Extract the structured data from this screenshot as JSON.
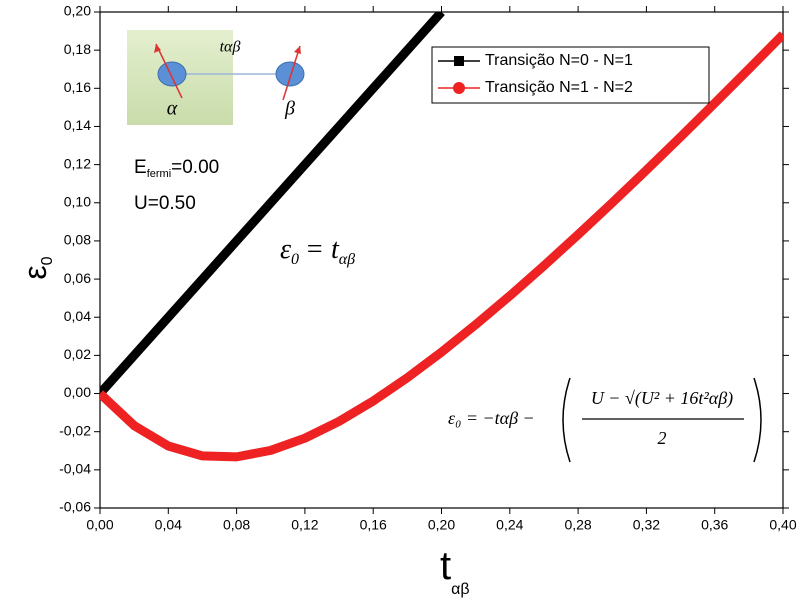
{
  "chart_data": {
    "type": "line",
    "xlabel": {
      "symbol": "t",
      "subscript": "αβ"
    },
    "ylabel": {
      "symbol": "ε",
      "subscript": "0"
    },
    "x": [
      0,
      0.02,
      0.04,
      0.06,
      0.08,
      0.1,
      0.12,
      0.14,
      0.16,
      0.18,
      0.2,
      0.22,
      0.24,
      0.26,
      0.28,
      0.3,
      0.32,
      0.34,
      0.36,
      0.38,
      0.4
    ],
    "series": [
      {
        "name": "Transição N=0 - N=1",
        "color": "#000000",
        "marker": "square",
        "values": [
          0,
          0.02,
          0.04,
          0.06,
          0.08,
          0.1,
          0.12,
          0.14,
          0.16,
          0.18,
          0.2,
          null,
          null,
          null,
          null,
          null,
          null,
          null,
          null,
          null,
          null
        ]
      },
      {
        "name": "Transição N=1 - N=2",
        "color": "#ee2222",
        "marker": "circle",
        "values": [
          0,
          -0.0168,
          -0.0275,
          -0.0327,
          -0.0332,
          -0.0298,
          -0.0234,
          -0.0146,
          -0.0039,
          0.0083,
          0.0217,
          0.0361,
          0.0512,
          0.067,
          0.0833,
          0.1,
          0.1171,
          0.1345,
          0.1522,
          0.1701,
          0.1882
        ]
      }
    ],
    "xlim": [
      0,
      0.4
    ],
    "ylim": [
      -0.06,
      0.2
    ],
    "xticks": [
      {
        "value": 0,
        "label": "0,00"
      },
      {
        "value": 0.04,
        "label": "0,04"
      },
      {
        "value": 0.08,
        "label": "0,08"
      },
      {
        "value": 0.12,
        "label": "0,12"
      },
      {
        "value": 0.16,
        "label": "0,16"
      },
      {
        "value": 0.2,
        "label": "0,20"
      },
      {
        "value": 0.24,
        "label": "0,24"
      },
      {
        "value": 0.28,
        "label": "0,28"
      },
      {
        "value": 0.32,
        "label": "0,32"
      },
      {
        "value": 0.36,
        "label": "0,36"
      },
      {
        "value": 0.4,
        "label": "0,40"
      }
    ],
    "yticks": [
      {
        "value": -0.06,
        "label": "-0,06"
      },
      {
        "value": -0.04,
        "label": "-0,04"
      },
      {
        "value": -0.02,
        "label": "-0,02"
      },
      {
        "value": 0,
        "label": "0,00"
      },
      {
        "value": 0.02,
        "label": "0,02"
      },
      {
        "value": 0.04,
        "label": "0,04"
      },
      {
        "value": 0.06,
        "label": "0,06"
      },
      {
        "value": 0.08,
        "label": "0,08"
      },
      {
        "value": 0.1,
        "label": "0,10"
      },
      {
        "value": 0.12,
        "label": "0,12"
      },
      {
        "value": 0.14,
        "label": "0,14"
      },
      {
        "value": 0.16,
        "label": "0,16"
      },
      {
        "value": 0.18,
        "label": "0,18"
      },
      {
        "value": 0.2,
        "label": "0,20"
      }
    ],
    "legend": "upper right",
    "annotations": {
      "efermi": {
        "main": "E",
        "subscript": "fermi",
        "rest": "=0.00"
      },
      "u": "U=0.50",
      "formula1": {
        "lhs": "ε",
        "sub": "0",
        "rhs": "= t",
        "rhs_sub": "αβ"
      },
      "formula2": {
        "lhs": "ε₀ = −tαβ −",
        "numerator": "U − √(U² + 16t²αβ)",
        "denominator": "2"
      },
      "inset": {
        "bond": "tαβ",
        "left": "α",
        "right": "β"
      }
    }
  }
}
